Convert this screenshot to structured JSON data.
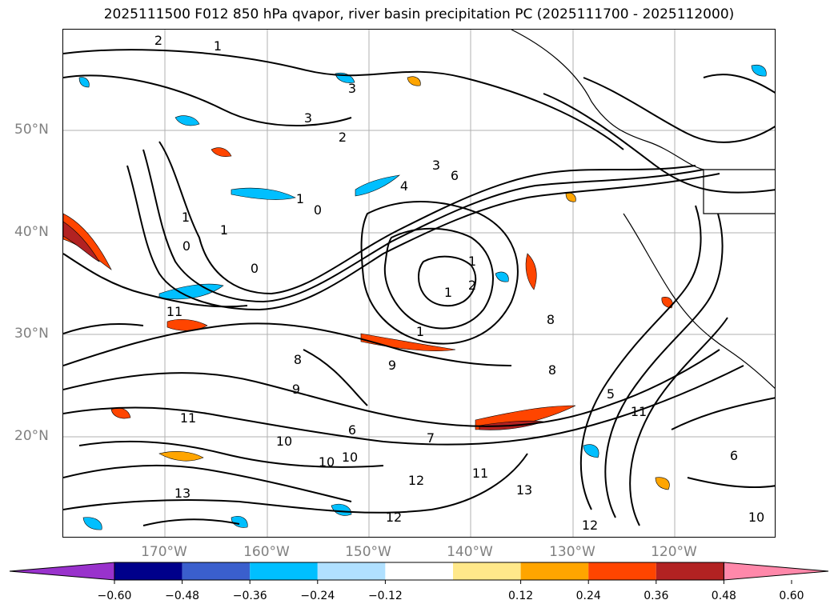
{
  "title": "2025111500 F012 850 hPa qvapor, river basin precipitation PC (2025111700 - 2025112000)",
  "map": {
    "lat_labels": [
      "50°N",
      "40°N",
      "30°N",
      "20°N"
    ],
    "lon_labels": [
      "170°W",
      "160°W",
      "150°W",
      "140°W",
      "130°W",
      "120°W"
    ],
    "contour_labels": [
      "2",
      "1",
      "3",
      "3",
      "2",
      "3",
      "4",
      "6",
      "1",
      "0",
      "1",
      "1",
      "0",
      "0",
      "1",
      "11",
      "1",
      "2",
      "1",
      "8",
      "9",
      "9",
      "8",
      "11",
      "6",
      "10",
      "10",
      "10",
      "7",
      "12",
      "13",
      "12",
      "11",
      "13",
      "8",
      "11",
      "5",
      "6",
      "12",
      "10"
    ],
    "colors": {
      "land_outline": "#000000",
      "grid": "#b0b0b0",
      "neg_strong": "#0000a0",
      "neg_mid": "#3a5fcd",
      "neg": "#00bfff",
      "neg_light": "#b0e0ff",
      "pos_light": "#ffe88a",
      "pos": "#ffa500",
      "pos_mid": "#ff4500",
      "pos_strong": "#b22222"
    }
  },
  "colorbar": {
    "ticks": [
      "−0.60",
      "−0.48",
      "−0.36",
      "−0.24",
      "−0.12",
      "0.12",
      "0.24",
      "0.36",
      "0.48",
      "0.60"
    ],
    "tick_values": [
      -0.6,
      -0.48,
      -0.36,
      -0.24,
      -0.12,
      0.12,
      0.24,
      0.36,
      0.48,
      0.6
    ],
    "colors": [
      "#9932cc",
      "#00008b",
      "#3a5fcd",
      "#00bfff",
      "#b0e0ff",
      "#ffffff",
      "#ffe88a",
      "#ffa500",
      "#ff4500",
      "#b22222",
      "#ff88aa"
    ]
  }
}
